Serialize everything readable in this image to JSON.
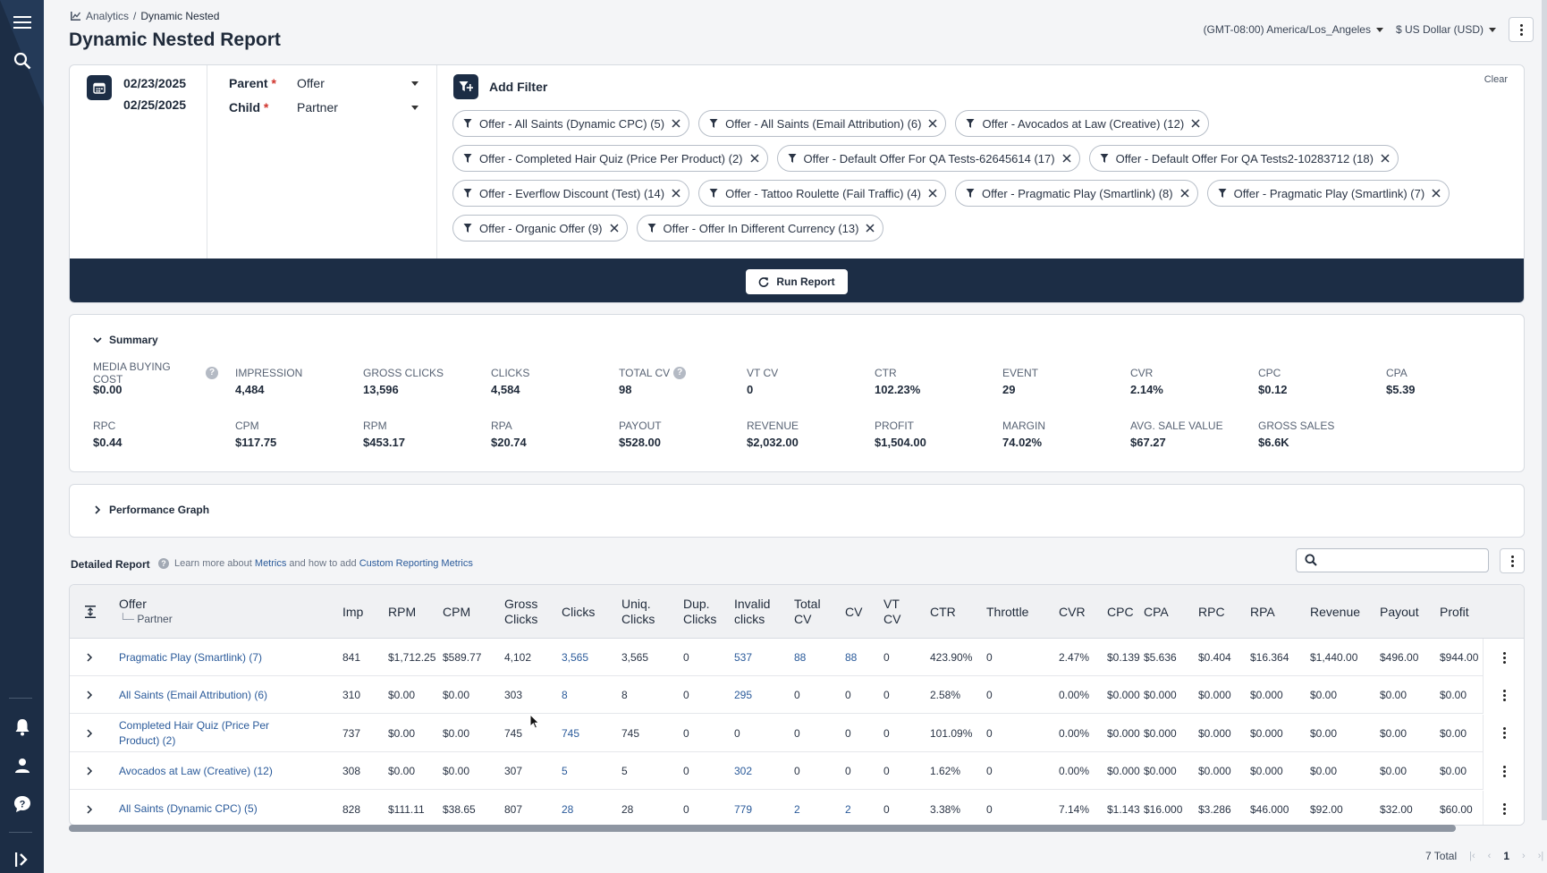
{
  "breadcrumb": {
    "root": "Analytics",
    "sep": "/",
    "current": "Dynamic Nested"
  },
  "title": "Dynamic Nested Report",
  "header": {
    "timezone": "(GMT-08:00) America/Los_Angeles",
    "currency": "$ US Dollar (USD)"
  },
  "dates": {
    "start": "02/23/2025",
    "end": "02/25/2025"
  },
  "parent": {
    "label": "Parent",
    "value": "Offer"
  },
  "child": {
    "label": "Child",
    "value": "Partner"
  },
  "add_filter": "Add Filter",
  "clear": "Clear",
  "filters": [
    "Offer - All Saints (Dynamic CPC) (5)",
    "Offer - All Saints (Email Attribution) (6)",
    "Offer - Avocados at Law (Creative) (12)",
    "Offer - Completed Hair Quiz (Price Per Product) (2)",
    "Offer - Default Offer For QA Tests-62645614 (17)",
    "Offer - Default Offer For QA Tests2-10283712 (18)",
    "Offer - Everflow Discount (Test) (14)",
    "Offer - Tattoo Roulette (Fail Traffic) (4)",
    "Offer - Pragmatic Play (Smartlink) (8)",
    "Offer - Pragmatic Play (Smartlink) (7)",
    "Offer - Organic Offer (9)",
    "Offer - Offer In Different Currency (13)"
  ],
  "run_report": "Run Report",
  "summary": {
    "title": "Summary",
    "metrics": [
      {
        "label": "MEDIA BUYING COST",
        "value": "$0.00",
        "help": true
      },
      {
        "label": "IMPRESSION",
        "value": "4,484"
      },
      {
        "label": "GROSS CLICKS",
        "value": "13,596"
      },
      {
        "label": "CLICKS",
        "value": "4,584"
      },
      {
        "label": "TOTAL CV",
        "value": "98",
        "help": true
      },
      {
        "label": "VT CV",
        "value": "0"
      },
      {
        "label": "CTR",
        "value": "102.23%"
      },
      {
        "label": "EVENT",
        "value": "29"
      },
      {
        "label": "CVR",
        "value": "2.14%"
      },
      {
        "label": "CPC",
        "value": "$0.12"
      },
      {
        "label": "CPA",
        "value": "$5.39"
      },
      {
        "label": "RPC",
        "value": "$0.44"
      },
      {
        "label": "CPM",
        "value": "$117.75"
      },
      {
        "label": "RPM",
        "value": "$453.17"
      },
      {
        "label": "RPA",
        "value": "$20.74"
      },
      {
        "label": "PAYOUT",
        "value": "$528.00"
      },
      {
        "label": "REVENUE",
        "value": "$2,032.00"
      },
      {
        "label": "PROFIT",
        "value": "$1,504.00"
      },
      {
        "label": "MARGIN",
        "value": "74.02%"
      },
      {
        "label": "AVG. SALE VALUE",
        "value": "$67.27"
      },
      {
        "label": "GROSS SALES",
        "value": "$6.6K"
      }
    ]
  },
  "performance_graph": "Performance Graph",
  "detailed_report": {
    "title": "Detailed Report",
    "learn_pre": "Learn more about",
    "learn_link1": "Metrics",
    "learn_mid": "and how to add",
    "learn_link2": "Custom Reporting Metrics"
  },
  "table": {
    "offer_header": "Offer",
    "sub_header": "Partner",
    "columns": [
      {
        "key": "imp",
        "label": "Imp"
      },
      {
        "key": "rpm",
        "label": "RPM"
      },
      {
        "key": "cpm",
        "label": "CPM"
      },
      {
        "key": "gross",
        "label": "Gross\nClicks"
      },
      {
        "key": "clicks",
        "label": "Clicks"
      },
      {
        "key": "uniq",
        "label": "Uniq.\nClicks"
      },
      {
        "key": "dup",
        "label": "Dup.\nClicks"
      },
      {
        "key": "invalid",
        "label": "Invalid\nclicks"
      },
      {
        "key": "totalcv",
        "label": "Total\nCV"
      },
      {
        "key": "cv",
        "label": "CV"
      },
      {
        "key": "vtcv",
        "label": "VT\nCV"
      },
      {
        "key": "ctr",
        "label": "CTR"
      },
      {
        "key": "throttle",
        "label": "Throttle"
      },
      {
        "key": "cvr",
        "label": "CVR"
      },
      {
        "key": "cpc",
        "label": "CPC"
      },
      {
        "key": "cpa",
        "label": "CPA"
      },
      {
        "key": "rpc",
        "label": "RPC"
      },
      {
        "key": "rpa",
        "label": "RPA"
      },
      {
        "key": "revenue",
        "label": "Revenue"
      },
      {
        "key": "payout",
        "label": "Payout"
      },
      {
        "key": "profit",
        "label": "Profit"
      }
    ],
    "rows": [
      {
        "offer": "Pragmatic Play (Smartlink) (7)",
        "imp": "841",
        "rpm": "$1,712.25",
        "cpm": "$589.77",
        "gross": "4,102",
        "clicks": "3,565",
        "uniq": "3,565",
        "dup": "0",
        "invalid": "537",
        "totalcv": "88",
        "cv": "88",
        "vtcv": "0",
        "ctr": "423.90%",
        "throttle": "0",
        "cvr": "2.47%",
        "cpc": "$0.139",
        "cpa": "$5.636",
        "rpc": "$0.404",
        "rpa": "$16.364",
        "revenue": "$1,440.00",
        "payout": "$496.00",
        "profit": "$944.00"
      },
      {
        "offer": "All Saints (Email Attribution) (6)",
        "imp": "310",
        "rpm": "$0.00",
        "cpm": "$0.00",
        "gross": "303",
        "clicks": "8",
        "uniq": "8",
        "dup": "0",
        "invalid": "295",
        "totalcv": "0",
        "cv": "0",
        "vtcv": "0",
        "ctr": "2.58%",
        "throttle": "0",
        "cvr": "0.00%",
        "cpc": "$0.000",
        "cpa": "$0.000",
        "rpc": "$0.000",
        "rpa": "$0.000",
        "revenue": "$0.00",
        "payout": "$0.00",
        "profit": "$0.00"
      },
      {
        "offer": "Completed Hair Quiz (Price Per Product) (2)",
        "imp": "737",
        "rpm": "$0.00",
        "cpm": "$0.00",
        "gross": "745",
        "clicks": "745",
        "uniq": "745",
        "dup": "0",
        "invalid": "0",
        "totalcv": "0",
        "cv": "0",
        "vtcv": "0",
        "ctr": "101.09%",
        "throttle": "0",
        "cvr": "0.00%",
        "cpc": "$0.000",
        "cpa": "$0.000",
        "rpc": "$0.000",
        "rpa": "$0.000",
        "revenue": "$0.00",
        "payout": "$0.00",
        "profit": "$0.00"
      },
      {
        "offer": "Avocados at Law (Creative) (12)",
        "imp": "308",
        "rpm": "$0.00",
        "cpm": "$0.00",
        "gross": "307",
        "clicks": "5",
        "uniq": "5",
        "dup": "0",
        "invalid": "302",
        "totalcv": "0",
        "cv": "0",
        "vtcv": "0",
        "ctr": "1.62%",
        "throttle": "0",
        "cvr": "0.00%",
        "cpc": "$0.000",
        "cpa": "$0.000",
        "rpc": "$0.000",
        "rpa": "$0.000",
        "revenue": "$0.00",
        "payout": "$0.00",
        "profit": "$0.00"
      },
      {
        "offer": "All Saints (Dynamic CPC) (5)",
        "imp": "828",
        "rpm": "$111.11",
        "cpm": "$38.65",
        "gross": "807",
        "clicks": "28",
        "uniq": "28",
        "dup": "0",
        "invalid": "779",
        "totalcv": "2",
        "cv": "2",
        "vtcv": "0",
        "ctr": "3.38%",
        "throttle": "0",
        "cvr": "7.14%",
        "cpc": "$1.143",
        "cpa": "$16.000",
        "rpc": "$3.286",
        "rpa": "$46.000",
        "revenue": "$92.00",
        "payout": "$32.00",
        "profit": "$60.00"
      }
    ]
  },
  "pagination": {
    "total": "7 Total",
    "page": "1",
    "first": "|‹",
    "prev": "‹",
    "next": "›",
    "last": "›|"
  }
}
